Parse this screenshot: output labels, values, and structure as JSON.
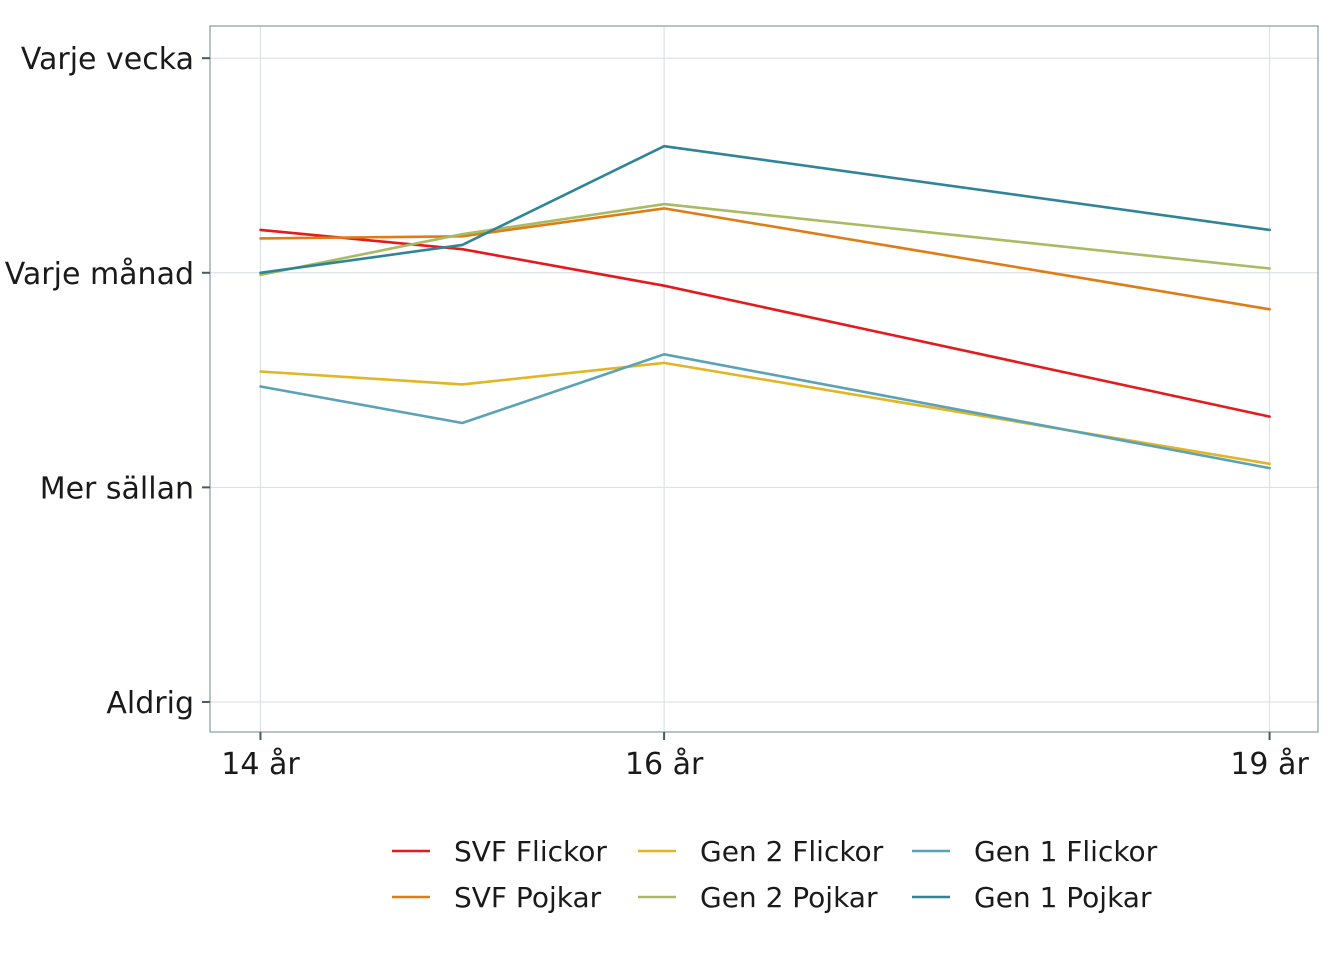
{
  "chart_data": {
    "type": "line",
    "title": "",
    "xlabel": "",
    "ylabel": "",
    "x_ticks": [
      {
        "value": 14,
        "label": "14 år"
      },
      {
        "value": 16,
        "label": "16 år"
      },
      {
        "value": 19,
        "label": "19 år"
      }
    ],
    "x_range": [
      13.75,
      19.24
    ],
    "y_ticks": [
      {
        "value": 1,
        "label": "Aldrig"
      },
      {
        "value": 2,
        "label": "Mer sällan"
      },
      {
        "value": 3,
        "label": "Varje månad"
      },
      {
        "value": 4,
        "label": "Varje vecka"
      }
    ],
    "y_range": [
      0.86,
      4.15
    ],
    "grid": true,
    "legend_position": "bottom",
    "series": [
      {
        "name": "SVF Flickor",
        "color": "#e41a1c",
        "x": [
          14,
          15,
          16,
          19
        ],
        "y": [
          3.2,
          3.11,
          2.94,
          2.33
        ]
      },
      {
        "name": "SVF Pojkar",
        "color": "#e07b16",
        "x": [
          14,
          15,
          16,
          19
        ],
        "y": [
          3.16,
          3.17,
          3.3,
          2.83
        ]
      },
      {
        "name": "Gen 2 Flickor",
        "color": "#e3b524",
        "x": [
          14,
          15,
          16,
          19
        ],
        "y": [
          2.54,
          2.48,
          2.58,
          2.11
        ]
      },
      {
        "name": "Gen 2 Pojkar",
        "color": "#a8ba62",
        "x": [
          14,
          15,
          16,
          19
        ],
        "y": [
          2.99,
          3.18,
          3.32,
          3.02
        ]
      },
      {
        "name": "Gen 1 Flickor",
        "color": "#5aa3b6",
        "x": [
          14,
          15,
          16,
          19
        ],
        "y": [
          2.47,
          2.3,
          2.62,
          2.09
        ]
      },
      {
        "name": "Gen 1 Pojkar",
        "color": "#2f8597",
        "x": [
          14,
          15,
          16,
          19
        ],
        "y": [
          3.0,
          3.13,
          3.59,
          3.2
        ]
      }
    ]
  }
}
